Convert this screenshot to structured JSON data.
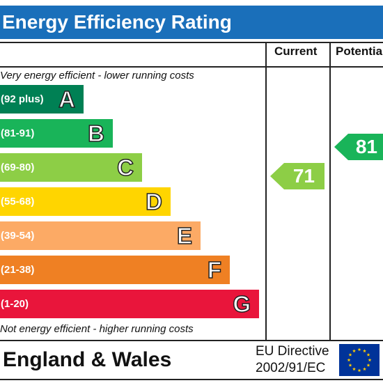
{
  "header": {
    "title": "Energy Efficiency Rating"
  },
  "columns": {
    "current": "Current",
    "potential": "Potential"
  },
  "notes": {
    "top": "Very energy efficient - lower running costs",
    "bottom": "Not energy efficient - higher running costs"
  },
  "bands": [
    {
      "range": "(92 plus)",
      "letter": "A",
      "color": "#008054"
    },
    {
      "range": "(81-91)",
      "letter": "B",
      "color": "#19b459"
    },
    {
      "range": "(69-80)",
      "letter": "C",
      "color": "#8dce46"
    },
    {
      "range": "(55-68)",
      "letter": "D",
      "color": "#ffd500"
    },
    {
      "range": "(39-54)",
      "letter": "E",
      "color": "#fcaa65"
    },
    {
      "range": "(21-38)",
      "letter": "F",
      "color": "#ef8023"
    },
    {
      "range": "(1-20)",
      "letter": "G",
      "color": "#e9153b"
    }
  ],
  "ratings": {
    "current": {
      "value": "71",
      "band": "C",
      "color": "#8dce46"
    },
    "potential": {
      "value": "81",
      "band": "B",
      "color": "#19b459"
    }
  },
  "footer": {
    "region": "England & Wales",
    "directive_line1": "EU Directive",
    "directive_line2": "2002/91/EC",
    "flag_color": "#003399",
    "star_color": "#ffcc00",
    "flag_icon": "eu-flag-icon"
  }
}
